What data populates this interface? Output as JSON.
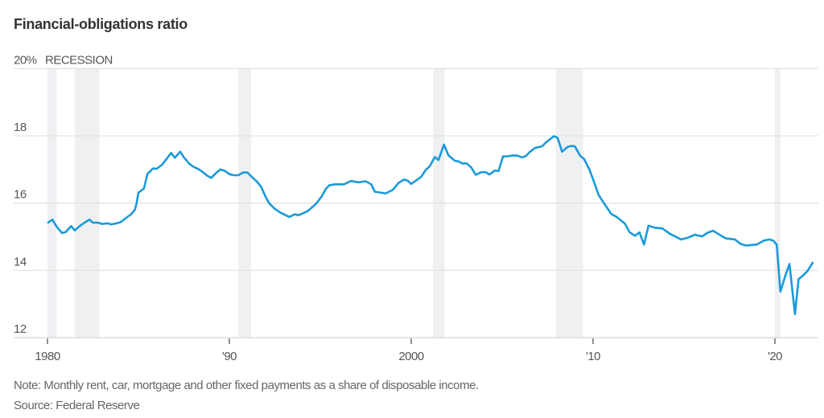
{
  "title": "Financial-obligations ratio",
  "note": "Note: Monthly rent, car, mortgage and other fixed payments as a share of disposable income.",
  "source": "Source: Federal Reserve",
  "chart_data": {
    "type": "line",
    "title": "Financial-obligations ratio",
    "xlabel": "",
    "ylabel": "",
    "y_unit_label": "20%",
    "legend_label": "RECESSION",
    "legend_placement": "top-left",
    "grid": true,
    "xlim": [
      1979.8,
      2022.5
    ],
    "ylim": [
      12,
      20
    ],
    "y_ticks": [
      12,
      14,
      16,
      18,
      20
    ],
    "y_tick_labels": [
      "12",
      "14",
      "16",
      "18",
      "20%"
    ],
    "x_ticks": [
      1980,
      1990,
      2000,
      2010,
      2020
    ],
    "x_tick_labels": [
      "1980",
      "'90",
      "2000",
      "'10",
      "'20"
    ],
    "colors": {
      "line": "#1a9ad9",
      "recession": "#eff0f2",
      "grid": "#e3e3e3"
    },
    "recessions": [
      [
        1980.0,
        1980.5
      ],
      [
        1981.5,
        1982.85
      ],
      [
        1990.5,
        1991.2
      ],
      [
        2001.2,
        2001.85
      ],
      [
        2007.95,
        2009.45
      ],
      [
        2020.0,
        2020.3
      ]
    ],
    "series": [
      {
        "values": [
          [
            1980.0,
            15.41
          ],
          [
            1980.27,
            15.51
          ],
          [
            1980.53,
            15.28
          ],
          [
            1980.8,
            15.11
          ],
          [
            1981.0,
            15.14
          ],
          [
            1981.3,
            15.32
          ],
          [
            1981.5,
            15.19
          ],
          [
            1981.8,
            15.33
          ],
          [
            1982.1,
            15.44
          ],
          [
            1982.3,
            15.51
          ],
          [
            1982.5,
            15.42
          ],
          [
            1982.8,
            15.42
          ],
          [
            1983.0,
            15.38
          ],
          [
            1983.3,
            15.4
          ],
          [
            1983.5,
            15.37
          ],
          [
            1983.8,
            15.4
          ],
          [
            1984.0,
            15.43
          ],
          [
            1984.3,
            15.55
          ],
          [
            1984.6,
            15.67
          ],
          [
            1984.8,
            15.8
          ],
          [
            1984.9,
            15.99
          ],
          [
            1985.0,
            16.31
          ],
          [
            1985.3,
            16.43
          ],
          [
            1985.5,
            16.87
          ],
          [
            1985.8,
            17.03
          ],
          [
            1986.0,
            17.02
          ],
          [
            1986.3,
            17.14
          ],
          [
            1986.5,
            17.28
          ],
          [
            1986.8,
            17.49
          ],
          [
            1987.0,
            17.35
          ],
          [
            1987.3,
            17.53
          ],
          [
            1987.5,
            17.36
          ],
          [
            1987.8,
            17.17
          ],
          [
            1988.0,
            17.09
          ],
          [
            1988.3,
            17.01
          ],
          [
            1988.5,
            16.94
          ],
          [
            1988.8,
            16.81
          ],
          [
            1989.0,
            16.75
          ],
          [
            1989.3,
            16.91
          ],
          [
            1989.5,
            17.0
          ],
          [
            1989.75,
            16.96
          ],
          [
            1990.0,
            16.86
          ],
          [
            1990.25,
            16.83
          ],
          [
            1990.5,
            16.83
          ],
          [
            1990.75,
            16.91
          ],
          [
            1991.0,
            16.91
          ],
          [
            1991.25,
            16.77
          ],
          [
            1991.5,
            16.65
          ],
          [
            1991.75,
            16.48
          ],
          [
            1992.0,
            16.18
          ],
          [
            1992.2,
            15.99
          ],
          [
            1992.5,
            15.83
          ],
          [
            1992.8,
            15.72
          ],
          [
            1993.3,
            15.59
          ],
          [
            1993.6,
            15.67
          ],
          [
            1993.8,
            15.64
          ],
          [
            1994.3,
            15.76
          ],
          [
            1994.6,
            15.9
          ],
          [
            1994.8,
            16.0
          ],
          [
            1995.1,
            16.22
          ],
          [
            1995.3,
            16.42
          ],
          [
            1995.5,
            16.53
          ],
          [
            1995.8,
            16.56
          ],
          [
            1996.3,
            16.56
          ],
          [
            1996.7,
            16.66
          ],
          [
            1997.1,
            16.62
          ],
          [
            1997.5,
            16.65
          ],
          [
            1997.8,
            16.56
          ],
          [
            1998.0,
            16.34
          ],
          [
            1998.6,
            16.29
          ],
          [
            1999.0,
            16.4
          ],
          [
            1999.3,
            16.6
          ],
          [
            1999.6,
            16.7
          ],
          [
            1999.8,
            16.67
          ],
          [
            2000.0,
            16.57
          ],
          [
            2000.55,
            16.78
          ],
          [
            2000.8,
            16.99
          ],
          [
            2001.0,
            17.08
          ],
          [
            2001.3,
            17.37
          ],
          [
            2001.5,
            17.28
          ],
          [
            2001.8,
            17.74
          ],
          [
            2002.05,
            17.42
          ],
          [
            2002.4,
            17.26
          ],
          [
            2002.6,
            17.24
          ],
          [
            2002.8,
            17.18
          ],
          [
            2003.05,
            17.18
          ],
          [
            2003.3,
            17.06
          ],
          [
            2003.55,
            16.84
          ],
          [
            2003.85,
            16.92
          ],
          [
            2004.1,
            16.92
          ],
          [
            2004.3,
            16.85
          ],
          [
            2004.6,
            16.97
          ],
          [
            2004.8,
            16.95
          ],
          [
            2005.05,
            17.39
          ],
          [
            2005.3,
            17.39
          ],
          [
            2005.6,
            17.42
          ],
          [
            2005.85,
            17.41
          ],
          [
            2006.1,
            17.36
          ],
          [
            2006.3,
            17.4
          ],
          [
            2006.5,
            17.51
          ],
          [
            2006.8,
            17.64
          ],
          [
            2007.2,
            17.69
          ],
          [
            2007.4,
            17.8
          ],
          [
            2007.85,
            17.99
          ],
          [
            2008.05,
            17.94
          ],
          [
            2008.3,
            17.53
          ],
          [
            2008.6,
            17.67
          ],
          [
            2008.8,
            17.7
          ],
          [
            2009.0,
            17.69
          ],
          [
            2009.3,
            17.4
          ],
          [
            2009.5,
            17.32
          ],
          [
            2009.8,
            17.0
          ],
          [
            2010.06,
            16.62
          ],
          [
            2010.3,
            16.25
          ],
          [
            2010.5,
            16.08
          ],
          [
            2010.7,
            15.92
          ],
          [
            2011.0,
            15.68
          ],
          [
            2011.3,
            15.59
          ],
          [
            2011.75,
            15.39
          ],
          [
            2012.0,
            15.14
          ],
          [
            2012.3,
            15.03
          ],
          [
            2012.55,
            15.13
          ],
          [
            2012.8,
            14.77
          ],
          [
            2013.05,
            15.33
          ],
          [
            2013.4,
            15.27
          ],
          [
            2013.8,
            15.25
          ],
          [
            2014.25,
            15.08
          ],
          [
            2014.85,
            14.92
          ],
          [
            2015.2,
            14.97
          ],
          [
            2015.6,
            15.06
          ],
          [
            2016.0,
            15.01
          ],
          [
            2016.3,
            15.12
          ],
          [
            2016.6,
            15.18
          ],
          [
            2016.9,
            15.08
          ],
          [
            2017.3,
            14.95
          ],
          [
            2017.8,
            14.92
          ],
          [
            2018.1,
            14.79
          ],
          [
            2018.4,
            14.74
          ],
          [
            2019.0,
            14.77
          ],
          [
            2019.4,
            14.89
          ],
          [
            2019.7,
            14.92
          ],
          [
            2019.9,
            14.89
          ],
          [
            2020.1,
            14.77
          ],
          [
            2020.3,
            13.37
          ],
          [
            2020.6,
            13.89
          ],
          [
            2020.8,
            14.19
          ],
          [
            2021.1,
            12.7
          ],
          [
            2021.3,
            13.74
          ],
          [
            2021.55,
            13.85
          ],
          [
            2021.8,
            13.99
          ],
          [
            2022.1,
            14.25
          ]
        ]
      }
    ]
  }
}
